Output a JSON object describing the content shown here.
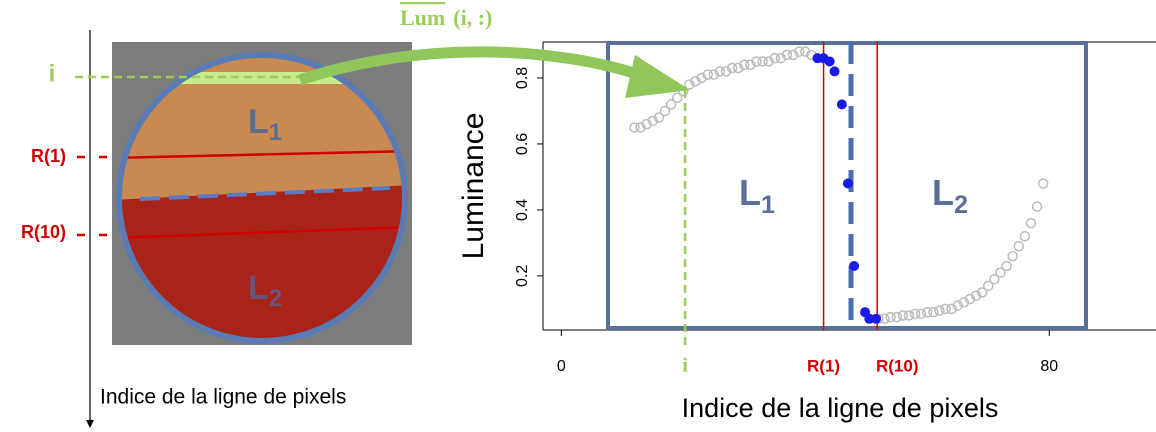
{
  "image_panel": {
    "row_label": "i",
    "ref_labels": [
      "R(1)",
      "R(10)"
    ],
    "region_labels": [
      {
        "text": "L",
        "sub": "1"
      },
      {
        "text": "L",
        "sub": "2"
      }
    ],
    "axis_label": "Indice de la ligne de pixels"
  },
  "chart_data": {
    "type": "scatter",
    "title": {
      "overlined": "Lum",
      "rest": "(i, :)"
    },
    "x_label": "Indice de la ligne de pixels",
    "y_label": "Luminance",
    "xlim": [
      -3,
      97.5
    ],
    "ylim": [
      0.036,
      0.909
    ],
    "xticks": [
      0,
      80
    ],
    "yticks": [
      0.2,
      0.4,
      0.6,
      0.8
    ],
    "series": [
      {
        "color": "#bbbbbb",
        "marker": "hollow",
        "x": [
          12,
          13,
          14,
          15,
          16,
          17,
          18,
          19,
          20,
          21,
          22,
          23,
          24,
          25,
          26,
          27,
          28,
          29,
          30,
          31,
          32,
          33,
          34,
          35,
          36,
          37,
          38,
          39,
          40,
          41,
          52,
          53,
          54,
          55,
          56,
          57,
          58,
          59,
          60,
          61,
          62,
          63,
          64,
          65,
          66,
          67,
          68,
          69,
          70,
          71,
          72,
          73,
          74,
          75,
          76,
          77,
          78,
          79
        ],
        "values": [
          0.65,
          0.65,
          0.66,
          0.67,
          0.68,
          0.7,
          0.72,
          0.74,
          0.76,
          0.78,
          0.79,
          0.8,
          0.81,
          0.81,
          0.82,
          0.82,
          0.83,
          0.83,
          0.84,
          0.84,
          0.85,
          0.85,
          0.85,
          0.86,
          0.86,
          0.87,
          0.87,
          0.88,
          0.88,
          0.87,
          0.07,
          0.07,
          0.075,
          0.075,
          0.08,
          0.08,
          0.085,
          0.085,
          0.09,
          0.09,
          0.095,
          0.1,
          0.1,
          0.11,
          0.12,
          0.13,
          0.14,
          0.15,
          0.17,
          0.19,
          0.21,
          0.23,
          0.26,
          0.29,
          0.32,
          0.36,
          0.41,
          0.48
        ]
      },
      {
        "color": "#1a1ae6",
        "marker": "filled",
        "x": [
          42,
          43,
          44,
          44.8,
          46,
          47,
          48,
          49.8,
          50.5,
          51.6
        ],
        "values": [
          0.86,
          0.86,
          0.85,
          0.82,
          0.72,
          0.48,
          0.23,
          0.09,
          0.07,
          0.07
        ]
      }
    ],
    "markers": [
      {
        "label": "i",
        "x": 20.3,
        "color": "#9acd5a"
      },
      {
        "label": "R(1)",
        "x": 43,
        "color": "#d10000"
      },
      {
        "label": "R(10)",
        "x": 51.8,
        "color": "#d10000"
      }
    ],
    "boundary": {
      "x": 47.5,
      "color": "#4a6fb5"
    },
    "region_labels": [
      {
        "text": "L",
        "sub": "1"
      },
      {
        "text": "L",
        "sub": "2"
      }
    ]
  }
}
